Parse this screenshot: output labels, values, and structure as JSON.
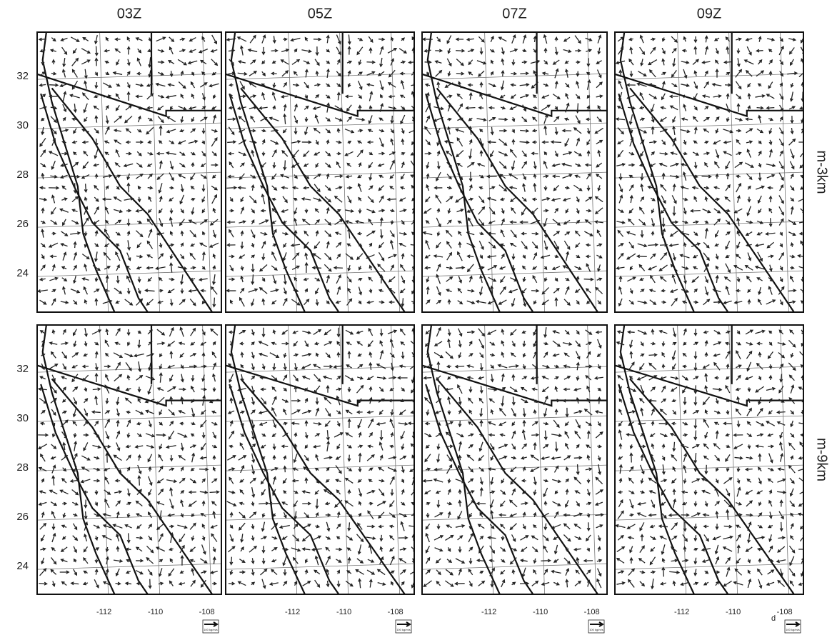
{
  "columns": [
    "03Z",
    "05Z",
    "07Z",
    "09Z"
  ],
  "rows": [
    "m-3km",
    "m-9km"
  ],
  "lat_ticks": [
    24,
    26,
    28,
    30,
    32
  ],
  "lon_ticks": [
    -112,
    -110,
    -108
  ],
  "scale_label": "100 kg/m/s",
  "panel_letter": "d"
}
